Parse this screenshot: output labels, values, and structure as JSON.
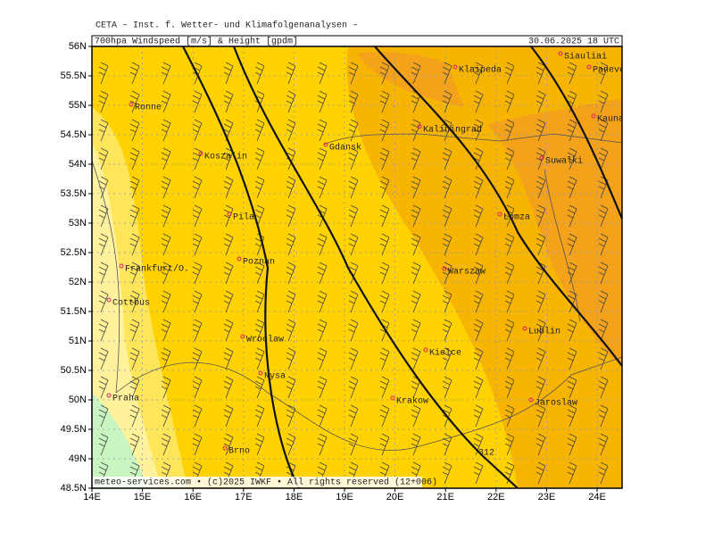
{
  "header": {
    "institute": "CETA – Inst. f. Wetter- und Klimafolgenanalysen –",
    "product": "700hpa Windspeed [m/s] & Height [gpdm]",
    "valid": "30.06.2025 18 UTC"
  },
  "map": {
    "lat_ticks": [
      "56N",
      "55.5N",
      "55N",
      "54.5N",
      "54N",
      "53.5N",
      "53N",
      "52.5N",
      "52N",
      "51.5N",
      "51N",
      "50.5N",
      "50N",
      "49.5N",
      "49N",
      "48.5N"
    ],
    "lon_ticks": [
      "14E",
      "15E",
      "16E",
      "17E",
      "18E",
      "19E",
      "20E",
      "21E",
      "22E",
      "23E",
      "24E"
    ],
    "cities": [
      "Siauliai",
      "Panevezys",
      "Klaipeda",
      "Ronne",
      "Kaunas",
      "Kaliningrad",
      "Gdansk",
      "Koszalin",
      "Suwalki",
      "Pila",
      "Lomza",
      "Poznan",
      "Frankfurt/O.",
      "Warszaw",
      "Cottbus",
      "Lublin",
      "Wroclaw",
      "Kielce",
      "Nysa",
      "Praha",
      "Krakow",
      "Jaroslaw",
      "Brno"
    ],
    "contour_label": "312"
  },
  "footer": "meteo-services.com • (c)2025 IWKF • All rights reserved (12+006)"
}
